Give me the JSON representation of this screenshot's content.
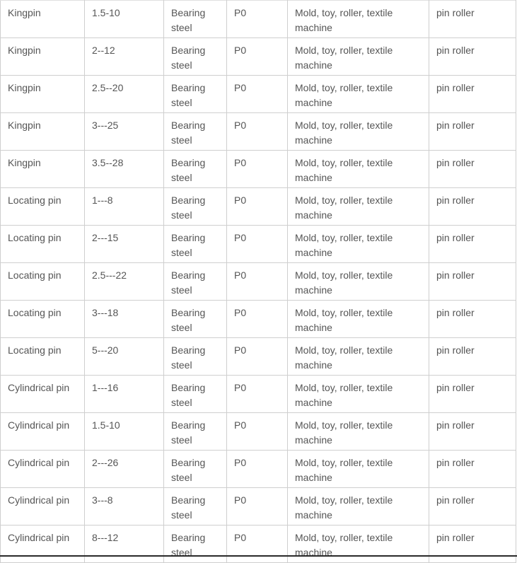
{
  "table": {
    "rows": [
      [
        "Kingpin",
        "1.5-10",
        "Bearing steel",
        "P0",
        "Mold, toy, roller, textile machine",
        "pin roller"
      ],
      [
        "Kingpin",
        "2--12",
        "Bearing steel",
        "P0",
        "Mold, toy, roller, textile machine",
        "pin roller"
      ],
      [
        "Kingpin",
        "2.5--20",
        "Bearing steel",
        "P0",
        "Mold, toy, roller, textile machine",
        "pin roller"
      ],
      [
        "Kingpin",
        "3---25",
        "Bearing steel",
        "P0",
        "Mold, toy, roller, textile machine",
        "pin roller"
      ],
      [
        "Kingpin",
        "3.5--28",
        "Bearing steel",
        "P0",
        "Mold, toy, roller, textile machine",
        "pin roller"
      ],
      [
        "Locating pin",
        "1---8",
        "Bearing steel",
        "P0",
        "Mold, toy, roller, textile machine",
        "pin roller"
      ],
      [
        "Locating pin",
        "2---15",
        "Bearing steel",
        "P0",
        "Mold, toy, roller, textile machine",
        "pin roller"
      ],
      [
        "Locating pin",
        "2.5---22",
        "Bearing steel",
        "P0",
        "Mold, toy, roller, textile machine",
        "pin roller"
      ],
      [
        "Locating pin",
        "3---18",
        "Bearing steel",
        "P0",
        "Mold, toy, roller, textile machine",
        "pin roller"
      ],
      [
        "Locating pin",
        "5---20",
        "Bearing steel",
        "P0",
        "Mold, toy, roller, textile machine",
        "pin roller"
      ],
      [
        "Cylindrical pin",
        "1---16",
        "Bearing steel",
        "P0",
        "Mold, toy, roller, textile machine",
        "pin roller"
      ],
      [
        "Cylindrical pin",
        "1.5-10",
        "Bearing steel",
        "P0",
        "Mold, toy, roller, textile machine",
        "pin roller"
      ],
      [
        "Cylindrical pin",
        "2---26",
        "Bearing steel",
        "P0",
        "Mold, toy, roller, textile machine",
        "pin roller"
      ],
      [
        "Cylindrical pin",
        "3---8",
        "Bearing steel",
        "P0",
        "Mold, toy, roller, textile machine",
        "pin roller"
      ],
      [
        "Cylindrical pin",
        "8---12",
        "Bearing steel",
        "P0",
        "Mold, toy, roller, textile machine",
        "pin roller"
      ]
    ]
  }
}
